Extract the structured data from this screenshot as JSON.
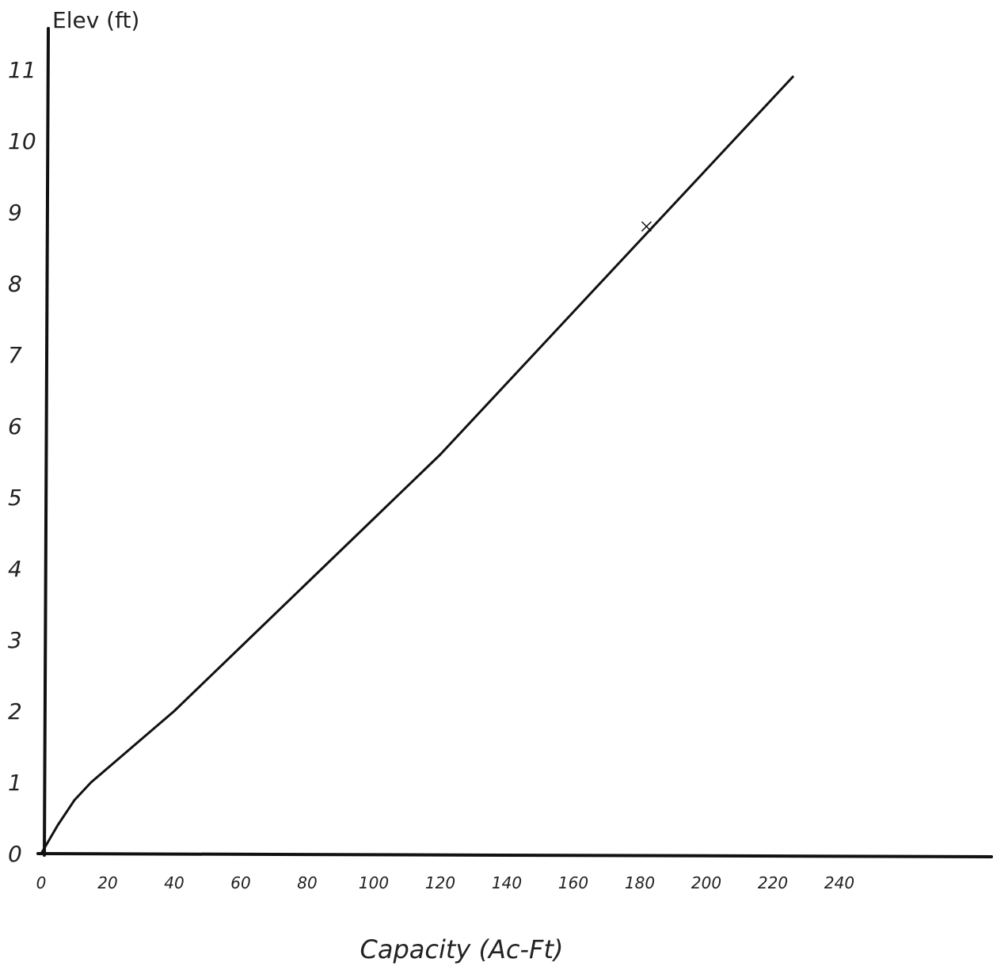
{
  "chart_data": {
    "type": "line",
    "ylabel": "Elev (ft)",
    "xlabel": "Capacity (Ac-Ft)",
    "xlim": [
      0,
      270
    ],
    "ylim": [
      0,
      12
    ],
    "x_ticks": [
      0,
      20,
      40,
      60,
      80,
      100,
      120,
      140,
      160,
      180,
      200,
      220,
      240
    ],
    "x_tick_labels": [
      "0",
      "20",
      "40",
      "60",
      "80",
      "100",
      "120",
      "140",
      "160",
      "180",
      "200",
      "220",
      "240"
    ],
    "y_ticks": [
      0,
      1,
      2,
      3,
      4,
      5,
      6,
      7,
      8,
      9,
      10,
      11
    ],
    "y_tick_labels": [
      "0",
      "1",
      "2",
      "3",
      "4",
      "5",
      "6",
      "7",
      "8",
      "9",
      "10",
      "11"
    ],
    "grid": false,
    "series": [
      {
        "x": [
          0,
          5,
          10,
          15,
          20,
          30,
          40,
          60,
          80,
          100,
          120,
          140,
          160,
          180,
          200,
          220,
          226
        ],
        "y": [
          0,
          0.4,
          0.75,
          1.0,
          1.2,
          1.6,
          2.0,
          2.9,
          3.8,
          4.7,
          5.6,
          6.6,
          7.6,
          8.6,
          9.6,
          10.6,
          10.9
        ]
      }
    ],
    "annotations": [
      {
        "mark": "x",
        "x": 182,
        "y": 8.8
      }
    ],
    "colors": {
      "line": "#111111",
      "axis": "#111111",
      "text": "#222222"
    }
  }
}
